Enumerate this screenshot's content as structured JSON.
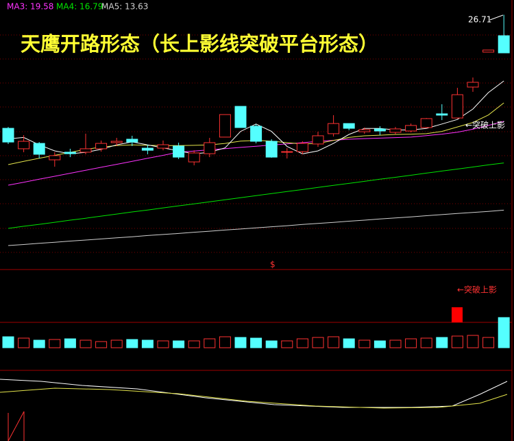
{
  "chart_data": {
    "type": "candlestick",
    "title": "天鹰开路形态（长上影线突破平台形态）",
    "ylim": [
      9.7,
      27.7
    ],
    "up_color": "#ff3232",
    "down_color": "#54ffff",
    "open": [
      19.11,
      17.74,
      18.1,
      17.0,
      17.51,
      17.51,
      17.74,
      18.15,
      18.38,
      17.78,
      17.78,
      17.92,
      16.86,
      17.41,
      18.52,
      20.58,
      19.25,
      18.24,
      17.51,
      17.55,
      18.06,
      18.75,
      19.43,
      18.88,
      19.07,
      18.84,
      18.93,
      19.16,
      20.08,
      19.8,
      21.87,
      24.21,
      25.31
    ],
    "high": [
      19.2,
      18.65,
      18.19,
      17.51,
      17.74,
      18.75,
      18.29,
      18.47,
      18.61,
      18.01,
      18.29,
      18.15,
      17.64,
      18.47,
      20.03,
      20.58,
      19.39,
      18.38,
      17.78,
      18.24,
      18.88,
      19.99,
      19.43,
      19.16,
      19.25,
      19.2,
      19.43,
      19.8,
      20.72,
      21.82,
      22.51,
      24.35,
      26.71
    ],
    "low": [
      18.06,
      17.51,
      17.09,
      16.54,
      17.18,
      17.37,
      17.55,
      17.92,
      17.92,
      17.37,
      17.64,
      17.05,
      16.63,
      17.18,
      18.52,
      19.16,
      18.1,
      17.14,
      17.09,
      17.37,
      17.87,
      18.56,
      18.98,
      18.75,
      18.65,
      18.7,
      18.84,
      19.11,
      19.66,
      19.76,
      21.55,
      24.21,
      24.16
    ],
    "close": [
      18.19,
      18.24,
      17.37,
      17.28,
      17.41,
      17.74,
      18.1,
      18.24,
      18.19,
      17.64,
      18.01,
      17.18,
      17.46,
      18.15,
      20.03,
      19.16,
      18.24,
      17.18,
      17.55,
      18.1,
      18.61,
      19.43,
      19.11,
      19.02,
      18.93,
      19.07,
      19.3,
      19.76,
      19.99,
      21.36,
      22.19,
      24.35,
      24.16
    ],
    "lines": [
      {
        "label": "MA3: 19.58",
        "color": "#ff33ff",
        "values": [
          15.3,
          15.5,
          15.7,
          15.9,
          16.1,
          16.3,
          16.5,
          16.7,
          16.9,
          17.1,
          17.3,
          17.51,
          17.59,
          17.67,
          17.75,
          17.83,
          17.91,
          17.99,
          18.07,
          18.15,
          18.23,
          18.31,
          18.38,
          18.42,
          18.45,
          18.49,
          18.52,
          18.62,
          18.72,
          18.85,
          19.05,
          19.3,
          19.58
        ]
      },
      {
        "label": "MA4: 16.79",
        "color": "#00e600",
        "values": [
          12.41,
          12.55,
          12.68,
          12.82,
          12.96,
          13.09,
          13.23,
          13.37,
          13.51,
          13.64,
          13.78,
          13.92,
          14.05,
          14.19,
          14.33,
          14.46,
          14.6,
          14.74,
          14.88,
          15.01,
          15.15,
          15.29,
          15.42,
          15.56,
          15.7,
          15.83,
          15.97,
          16.11,
          16.25,
          16.38,
          16.52,
          16.66,
          16.79
        ]
      },
      {
        "label": "MA5: 13.63",
        "color": "#d0d0d0",
        "values": [
          11.26,
          11.33,
          11.41,
          11.48,
          11.56,
          11.63,
          11.7,
          11.78,
          11.85,
          11.93,
          12.0,
          12.07,
          12.15,
          12.22,
          12.3,
          12.37,
          12.44,
          12.52,
          12.59,
          12.67,
          12.74,
          12.81,
          12.89,
          12.96,
          13.04,
          13.11,
          13.18,
          13.26,
          13.33,
          13.41,
          13.48,
          13.55,
          13.63
        ]
      },
      {
        "color": "#e6e64c",
        "values": [
          16.68,
          16.9,
          17.1,
          17.3,
          17.5,
          17.7,
          17.85,
          17.95,
          18.0,
          17.97,
          17.95,
          17.95,
          17.97,
          18.0,
          18.1,
          18.25,
          18.3,
          18.25,
          18.15,
          18.06,
          18.1,
          18.3,
          18.5,
          18.61,
          18.65,
          18.7,
          18.72,
          18.75,
          18.9,
          19.2,
          19.5,
          20.0,
          20.81
        ]
      },
      {
        "color": "#ffffff",
        "values": [
          18.4,
          18.5,
          18.0,
          17.6,
          17.4,
          17.5,
          17.7,
          18.0,
          18.2,
          18.0,
          17.8,
          17.6,
          17.4,
          17.5,
          17.8,
          18.9,
          19.4,
          18.9,
          17.9,
          17.4,
          17.6,
          18.1,
          18.7,
          19.1,
          19.1,
          19.0,
          19.0,
          19.1,
          19.4,
          19.7,
          20.4,
          21.5,
          22.28
        ]
      }
    ],
    "annotations": [
      {
        "text": "26.71"
      },
      {
        "text": "←突破上影"
      },
      {
        "text": "←突破上影"
      },
      {
        "text": "$"
      }
    ],
    "volume": {
      "ylim": [
        0,
        50
      ],
      "values": [
        16,
        14,
        11,
        12,
        13,
        11,
        9,
        11,
        12,
        11,
        10,
        10,
        10,
        13,
        16,
        15,
        14,
        10,
        10,
        13,
        15,
        16,
        13,
        11,
        10,
        11,
        13,
        14,
        15,
        17,
        18,
        15,
        44
      ]
    }
  }
}
